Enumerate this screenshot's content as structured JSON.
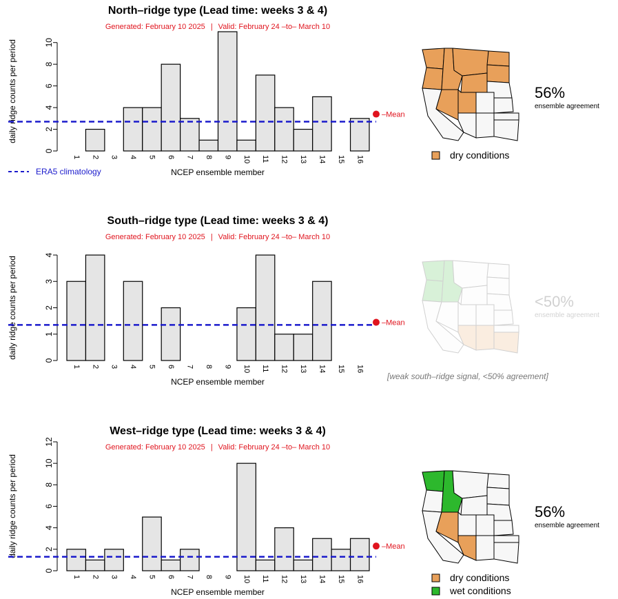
{
  "colors": {
    "bar_fill": "#e5e5e5",
    "bar_stroke": "#000000",
    "climatology": "#1a1acc",
    "mean": "#e0141e",
    "subtitle": "#e0141e",
    "dry": "#e8a05a",
    "wet": "#2db82d",
    "map_border": "#000000",
    "map_fill": "#f7f7f7"
  },
  "legend": {
    "climatology_label": "ERA5 climatology",
    "dry_label": "dry conditions",
    "wet_label": "wet conditions"
  },
  "chart_data": [
    {
      "type": "bar",
      "title": "North–ridge type (Lead time: weeks 3 & 4)",
      "subtitle_generated": "Generated: February 10 2025",
      "subtitle_sep": "|",
      "subtitle_valid": "Valid: February 24 –to– March 10",
      "xlabel": "NCEP ensemble member",
      "ylabel": "daily ridge counts per period",
      "categories": [
        "1",
        "2",
        "3",
        "4",
        "5",
        "6",
        "7",
        "8",
        "9",
        "10",
        "11",
        "12",
        "13",
        "14",
        "15",
        "16"
      ],
      "values": [
        0,
        2,
        0,
        4,
        4,
        8,
        3,
        1,
        11,
        1,
        7,
        4,
        2,
        5,
        0,
        3
      ],
      "ylim": [
        0,
        11
      ],
      "yticks": [
        0,
        2,
        4,
        6,
        8,
        10
      ],
      "climatology": 2.7,
      "mean_value": 3.4,
      "mean_label": "–Mean",
      "agreement": "56%",
      "agreement_label": "ensemble agreement",
      "faded": false,
      "map": "north",
      "legend": [
        "dry"
      ],
      "show_climatology_legend": true,
      "note": ""
    },
    {
      "type": "bar",
      "title": "South–ridge type (Lead time: weeks 3 & 4)",
      "subtitle_generated": "Generated: February 10 2025",
      "subtitle_sep": "|",
      "subtitle_valid": "Valid: February 24 –to– March 10",
      "xlabel": "NCEP ensemble member",
      "ylabel": "daily ridge counts per period",
      "categories": [
        "1",
        "2",
        "3",
        "4",
        "5",
        "6",
        "7",
        "8",
        "9",
        "10",
        "11",
        "12",
        "13",
        "14",
        "15",
        "16"
      ],
      "values": [
        3,
        4,
        0,
        3,
        0,
        2,
        0,
        0,
        0,
        2,
        4,
        1,
        1,
        3,
        0,
        0
      ],
      "ylim": [
        0,
        4
      ],
      "yticks": [
        0,
        1,
        2,
        3,
        4
      ],
      "climatology": 1.35,
      "mean_value": 1.45,
      "mean_label": "–Mean",
      "agreement": "<50%",
      "agreement_label": "ensemble agreement",
      "faded": true,
      "map": "south",
      "legend": [],
      "show_climatology_legend": false,
      "note": "[weak south–ridge signal, <50% agreement]"
    },
    {
      "type": "bar",
      "title": "West–ridge type (Lead time: weeks 3 & 4)",
      "subtitle_generated": "Generated: February 10 2025",
      "subtitle_sep": "|",
      "subtitle_valid": "Valid: February 24 –to– March 10",
      "xlabel": "NCEP ensemble member",
      "ylabel": "daily ridge counts per period",
      "categories": [
        "1",
        "2",
        "3",
        "4",
        "5",
        "6",
        "7",
        "8",
        "9",
        "10",
        "11",
        "12",
        "13",
        "14",
        "15",
        "16"
      ],
      "values": [
        2,
        1,
        2,
        0,
        5,
        1,
        2,
        0,
        0,
        10,
        1,
        4,
        1,
        3,
        2,
        3
      ],
      "ylim": [
        0,
        12
      ],
      "yticks": [
        0,
        2,
        4,
        6,
        8,
        10,
        12
      ],
      "climatology": 1.3,
      "mean_value": 2.3,
      "mean_label": "–Mean",
      "agreement": "56%",
      "agreement_label": "ensemble agreement",
      "faded": false,
      "map": "west",
      "legend": [
        "dry",
        "wet"
      ],
      "show_climatology_legend": false,
      "note": ""
    }
  ]
}
